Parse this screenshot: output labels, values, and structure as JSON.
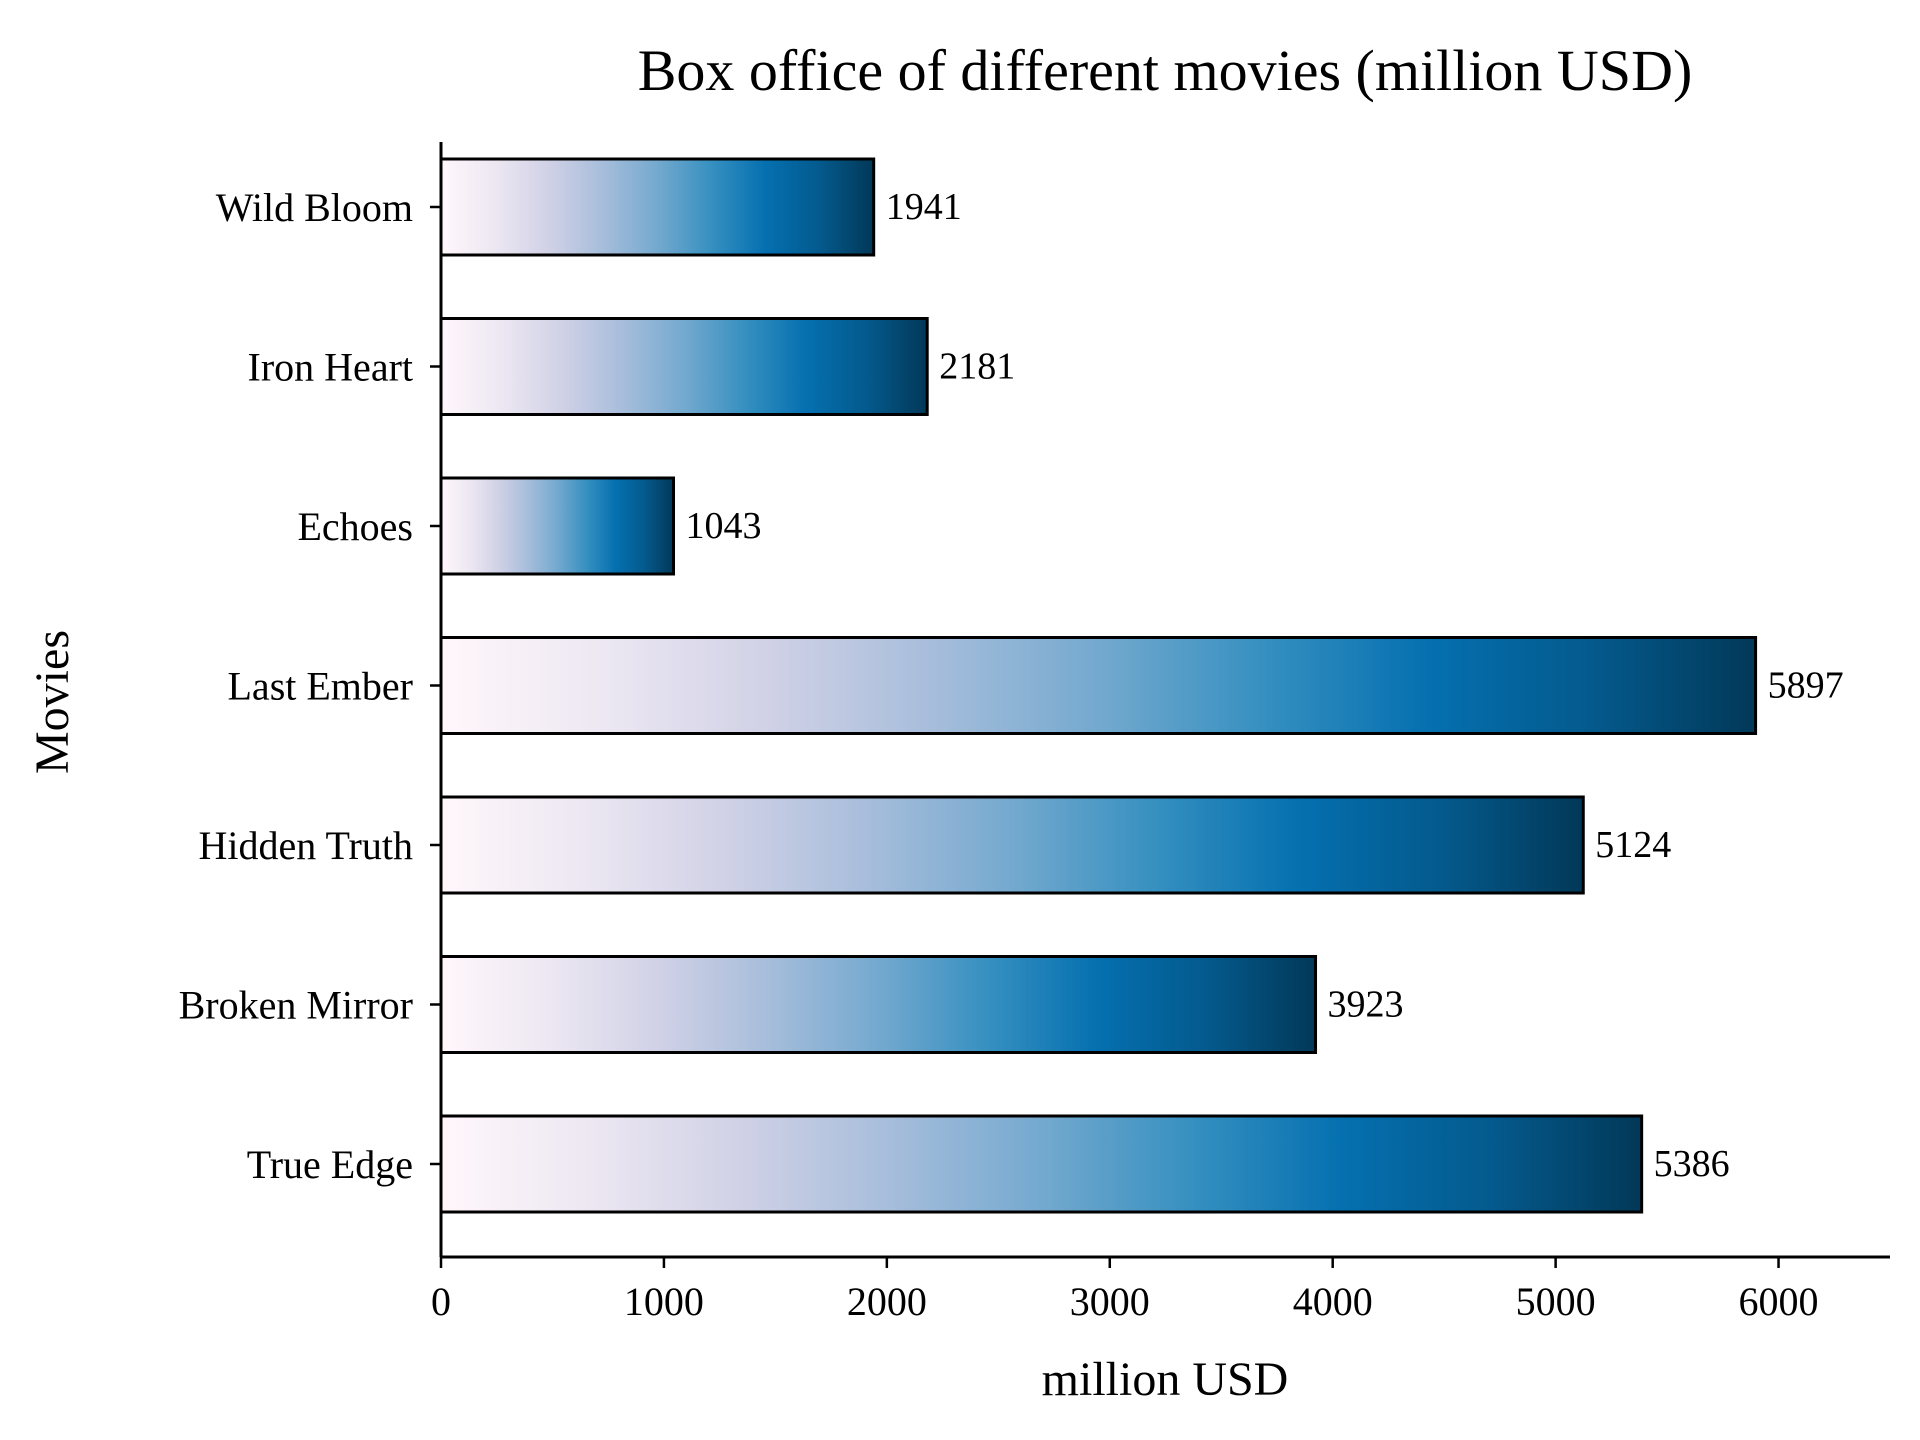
{
  "chart_data": {
    "type": "bar",
    "orientation": "horizontal",
    "title": "Box office of different movies (million USD)",
    "xlabel": "million USD",
    "ylabel": "Movies",
    "categories": [
      "Wild Bloom",
      "Iron Heart",
      "Echoes",
      "Last Ember",
      "Hidden Truth",
      "Broken Mirror",
      "True Edge"
    ],
    "values": [
      1941,
      2181,
      1043,
      5897,
      5124,
      3923,
      5386
    ],
    "xlim": [
      0,
      6500
    ],
    "xticks": [
      0,
      1000,
      2000,
      3000,
      4000,
      5000,
      6000
    ],
    "grid": false,
    "legend": "none",
    "bar_gradient": [
      "#fff7fb",
      "#ece7f2",
      "#d0d1e6",
      "#a6bddb",
      "#74a9cf",
      "#3690c0",
      "#0570b0",
      "#045a8d",
      "#023858"
    ],
    "bar_edge_color": "#000000"
  }
}
